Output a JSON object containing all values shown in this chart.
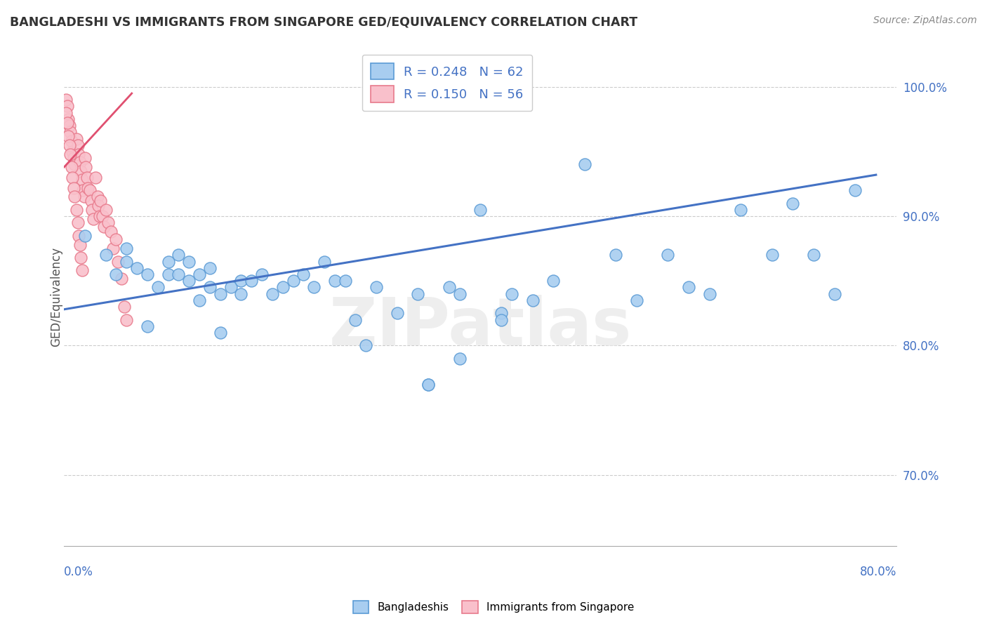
{
  "title": "BANGLADESHI VS IMMIGRANTS FROM SINGAPORE GED/EQUIVALENCY CORRELATION CHART",
  "source": "Source: ZipAtlas.com",
  "ylabel": "GED/Equivalency",
  "yticks_labels": [
    "70.0%",
    "80.0%",
    "90.0%",
    "100.0%"
  ],
  "ytick_vals": [
    0.7,
    0.8,
    0.9,
    1.0
  ],
  "xlim": [
    0.0,
    0.8
  ],
  "ylim": [
    0.645,
    1.03
  ],
  "blue_fill": "#A8CDF0",
  "blue_edge": "#5B9BD5",
  "pink_fill": "#F9C0CB",
  "pink_edge": "#E87A8C",
  "blue_line": "#4472C4",
  "pink_line": "#E05070",
  "grid_color": "#CCCCCC",
  "blue_trend_x": [
    0.0,
    0.78
  ],
  "blue_trend_y": [
    0.828,
    0.932
  ],
  "pink_trend_x": [
    0.0,
    0.065
  ],
  "pink_trend_y": [
    0.938,
    0.995
  ],
  "scatter_blue_x": [
    0.02,
    0.04,
    0.05,
    0.06,
    0.06,
    0.07,
    0.08,
    0.09,
    0.1,
    0.1,
    0.11,
    0.11,
    0.12,
    0.12,
    0.13,
    0.13,
    0.14,
    0.14,
    0.15,
    0.16,
    0.17,
    0.17,
    0.18,
    0.19,
    0.2,
    0.21,
    0.22,
    0.23,
    0.24,
    0.25,
    0.26,
    0.27,
    0.28,
    0.29,
    0.3,
    0.32,
    0.34,
    0.35,
    0.37,
    0.38,
    0.4,
    0.42,
    0.43,
    0.45,
    0.47,
    0.5,
    0.53,
    0.55,
    0.58,
    0.6,
    0.62,
    0.65,
    0.68,
    0.7,
    0.72,
    0.74,
    0.76,
    0.35,
    0.38,
    0.42,
    0.15,
    0.08
  ],
  "scatter_blue_y": [
    0.885,
    0.87,
    0.855,
    0.875,
    0.865,
    0.86,
    0.855,
    0.845,
    0.855,
    0.865,
    0.855,
    0.87,
    0.85,
    0.865,
    0.855,
    0.835,
    0.845,
    0.86,
    0.84,
    0.845,
    0.84,
    0.85,
    0.85,
    0.855,
    0.84,
    0.845,
    0.85,
    0.855,
    0.845,
    0.865,
    0.85,
    0.85,
    0.82,
    0.8,
    0.845,
    0.825,
    0.84,
    0.77,
    0.845,
    0.84,
    0.905,
    0.825,
    0.84,
    0.835,
    0.85,
    0.94,
    0.87,
    0.835,
    0.87,
    0.845,
    0.84,
    0.905,
    0.87,
    0.91,
    0.87,
    0.84,
    0.92,
    0.77,
    0.79,
    0.82,
    0.81,
    0.815
  ],
  "scatter_pink_x": [
    0.002,
    0.003,
    0.004,
    0.005,
    0.006,
    0.007,
    0.008,
    0.009,
    0.01,
    0.012,
    0.013,
    0.014,
    0.015,
    0.016,
    0.017,
    0.018,
    0.019,
    0.02,
    0.021,
    0.022,
    0.023,
    0.025,
    0.026,
    0.027,
    0.028,
    0.03,
    0.032,
    0.033,
    0.034,
    0.035,
    0.037,
    0.038,
    0.04,
    0.042,
    0.045,
    0.047,
    0.05,
    0.052,
    0.055,
    0.058,
    0.06,
    0.002,
    0.003,
    0.004,
    0.005,
    0.006,
    0.007,
    0.008,
    0.009,
    0.01,
    0.012,
    0.013,
    0.014,
    0.015,
    0.016,
    0.017
  ],
  "scatter_pink_y": [
    0.99,
    0.985,
    0.975,
    0.97,
    0.965,
    0.958,
    0.95,
    0.945,
    0.94,
    0.96,
    0.955,
    0.948,
    0.942,
    0.935,
    0.928,
    0.92,
    0.915,
    0.945,
    0.938,
    0.93,
    0.922,
    0.92,
    0.912,
    0.905,
    0.898,
    0.93,
    0.915,
    0.908,
    0.9,
    0.912,
    0.9,
    0.892,
    0.905,
    0.895,
    0.888,
    0.875,
    0.882,
    0.865,
    0.852,
    0.83,
    0.82,
    0.98,
    0.972,
    0.962,
    0.955,
    0.948,
    0.938,
    0.93,
    0.922,
    0.915,
    0.905,
    0.895,
    0.885,
    0.878,
    0.868,
    0.858
  ],
  "watermark_text": "ZIPatlas",
  "legend_labels": [
    "R = 0.248   N = 62",
    "R = 0.150   N = 56"
  ],
  "bottom_legend_labels": [
    "Bangladeshis",
    "Immigrants from Singapore"
  ],
  "label_color": "#4472C4",
  "background": "#FFFFFF"
}
